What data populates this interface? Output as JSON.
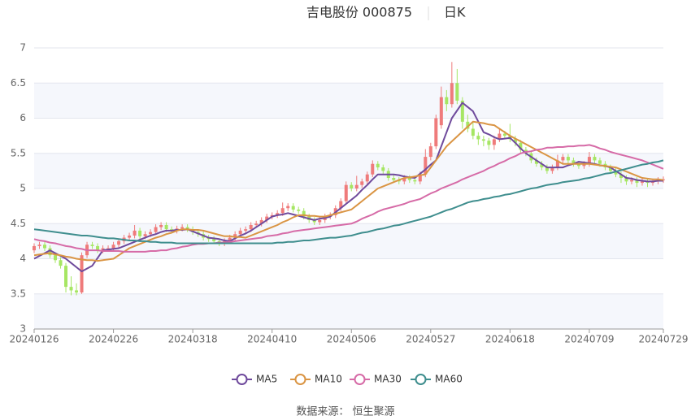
{
  "chart_data": {
    "type": "candlestick",
    "title": "吉电股份 000875",
    "period": "日K",
    "source": "数据来源： 恒生聚源",
    "categories": [
      "20240126",
      null,
      null,
      null,
      null,
      null,
      null,
      null,
      null,
      null,
      null,
      null,
      null,
      null,
      null,
      "20240226",
      null,
      null,
      null,
      null,
      null,
      null,
      null,
      null,
      null,
      null,
      null,
      null,
      null,
      null,
      "20240318",
      null,
      null,
      null,
      null,
      null,
      null,
      null,
      null,
      null,
      null,
      null,
      null,
      null,
      null,
      "20240410",
      null,
      null,
      null,
      null,
      null,
      null,
      null,
      null,
      null,
      null,
      null,
      null,
      null,
      null,
      "20240506",
      null,
      null,
      null,
      null,
      null,
      null,
      null,
      null,
      null,
      null,
      null,
      null,
      null,
      null,
      "20240527",
      null,
      null,
      null,
      null,
      null,
      null,
      null,
      null,
      null,
      null,
      null,
      null,
      null,
      null,
      "20240618",
      null,
      null,
      null,
      null,
      null,
      null,
      null,
      null,
      null,
      null,
      null,
      null,
      null,
      null,
      "20240709",
      null,
      null,
      null,
      null,
      null,
      null,
      null,
      null,
      null,
      null,
      null,
      null,
      null,
      "20240729"
    ],
    "open": [
      4.12,
      4.18,
      4.2,
      4.15,
      4.05,
      3.98,
      3.9,
      3.6,
      3.55,
      3.52,
      4.05,
      4.2,
      4.18,
      4.12,
      4.15,
      4.15,
      4.2,
      4.25,
      4.3,
      4.33,
      4.4,
      4.32,
      4.35,
      4.38,
      4.45,
      4.48,
      4.42,
      4.4,
      4.43,
      4.45,
      4.42,
      4.38,
      4.35,
      4.3,
      4.28,
      4.25,
      4.22,
      4.25,
      4.3,
      4.35,
      4.4,
      4.42,
      4.48,
      4.5,
      4.55,
      4.6,
      4.62,
      4.65,
      4.72,
      4.75,
      4.7,
      4.68,
      4.6,
      4.55,
      4.52,
      4.55,
      4.6,
      4.62,
      4.72,
      4.82,
      5.05,
      5.0,
      5.05,
      5.1,
      5.2,
      5.35,
      5.3,
      5.25,
      5.15,
      5.12,
      5.1,
      5.15,
      5.12,
      5.1,
      5.2,
      5.45,
      5.6,
      5.9,
      6.3,
      6.2,
      6.5,
      6.25,
      5.95,
      5.85,
      5.75,
      5.7,
      5.68,
      5.62,
      5.7,
      5.78,
      5.75,
      5.7,
      5.65,
      5.55,
      5.5,
      5.4,
      5.35,
      5.3,
      5.25,
      5.3,
      5.4,
      5.45,
      5.4,
      5.35,
      5.32,
      5.35,
      5.45,
      5.4,
      5.35,
      5.3,
      5.25,
      5.2,
      5.15,
      5.1,
      5.12,
      5.08,
      5.1,
      5.08,
      5.1,
      5.12
    ],
    "high": [
      4.22,
      4.24,
      4.24,
      4.19,
      4.09,
      4.02,
      3.94,
      3.75,
      3.65,
      4.09,
      4.24,
      4.24,
      4.22,
      4.19,
      4.19,
      4.24,
      4.29,
      4.34,
      4.37,
      4.48,
      4.44,
      4.39,
      4.42,
      4.49,
      4.52,
      4.52,
      4.46,
      4.47,
      4.49,
      4.49,
      4.46,
      4.42,
      4.39,
      4.34,
      4.32,
      4.29,
      4.29,
      4.34,
      4.39,
      4.44,
      4.46,
      4.52,
      4.54,
      4.59,
      4.64,
      4.66,
      4.69,
      4.8,
      4.79,
      4.79,
      4.74,
      4.72,
      4.64,
      4.59,
      4.59,
      4.64,
      4.66,
      4.76,
      4.86,
      5.1,
      5.09,
      5.18,
      5.14,
      5.24,
      5.4,
      5.39,
      5.34,
      5.29,
      5.19,
      5.16,
      5.19,
      5.19,
      5.16,
      5.24,
      5.56,
      5.65,
      6.05,
      6.45,
      6.4,
      6.8,
      6.7,
      6.3,
      6.05,
      5.95,
      5.8,
      5.75,
      5.72,
      5.75,
      5.85,
      5.82,
      5.92,
      5.75,
      5.69,
      5.59,
      5.54,
      5.44,
      5.39,
      5.34,
      5.34,
      5.48,
      5.49,
      5.49,
      5.44,
      5.39,
      5.39,
      5.52,
      5.49,
      5.44,
      5.39,
      5.34,
      5.29,
      5.24,
      5.19,
      5.16,
      5.16,
      5.14,
      5.14,
      5.14,
      5.16,
      5.17
    ],
    "low": [
      4.08,
      4.14,
      4.11,
      4.01,
      3.94,
      3.86,
      3.52,
      3.48,
      3.48,
      3.5,
      4.01,
      4.14,
      4.08,
      4.08,
      4.11,
      4.11,
      4.16,
      4.21,
      4.26,
      4.29,
      4.28,
      4.28,
      4.31,
      4.34,
      4.41,
      4.38,
      4.36,
      4.36,
      4.39,
      4.38,
      4.34,
      4.31,
      4.26,
      4.24,
      4.21,
      4.18,
      4.18,
      4.21,
      4.26,
      4.31,
      4.36,
      4.38,
      4.44,
      4.46,
      4.51,
      4.56,
      4.58,
      4.61,
      4.68,
      4.66,
      4.64,
      4.56,
      4.51,
      4.48,
      4.48,
      4.51,
      4.56,
      4.58,
      4.68,
      4.78,
      4.96,
      4.96,
      5.01,
      5.06,
      5.16,
      5.26,
      5.21,
      5.11,
      5.08,
      5.06,
      5.06,
      5.08,
      5.06,
      5.06,
      5.16,
      5.4,
      5.56,
      5.85,
      6.1,
      6.15,
      6.2,
      5.85,
      5.8,
      5.7,
      5.62,
      5.6,
      5.55,
      5.55,
      5.66,
      5.7,
      5.66,
      5.6,
      5.51,
      5.46,
      5.36,
      5.31,
      5.26,
      5.21,
      5.21,
      5.26,
      5.36,
      5.36,
      5.31,
      5.28,
      5.28,
      5.31,
      5.36,
      5.31,
      5.26,
      5.21,
      5.16,
      5.08,
      5.05,
      5.06,
      5.02,
      5.04,
      5.02,
      5.04,
      5.06,
      5.08
    ],
    "close": [
      4.18,
      4.2,
      4.15,
      4.05,
      3.98,
      3.9,
      3.6,
      3.55,
      3.52,
      4.05,
      4.2,
      4.18,
      4.12,
      4.15,
      4.15,
      4.2,
      4.25,
      4.3,
      4.33,
      4.4,
      4.32,
      4.35,
      4.38,
      4.45,
      4.48,
      4.42,
      4.4,
      4.43,
      4.45,
      4.42,
      4.38,
      4.35,
      4.3,
      4.28,
      4.25,
      4.22,
      4.25,
      4.3,
      4.35,
      4.4,
      4.42,
      4.48,
      4.5,
      4.55,
      4.6,
      4.62,
      4.65,
      4.72,
      4.75,
      4.7,
      4.68,
      4.6,
      4.55,
      4.52,
      4.55,
      4.6,
      4.62,
      4.72,
      4.82,
      5.05,
      5.0,
      5.05,
      5.1,
      5.2,
      5.35,
      5.3,
      5.25,
      5.15,
      5.12,
      5.1,
      5.15,
      5.12,
      5.1,
      5.2,
      5.45,
      5.6,
      6.0,
      6.3,
      6.2,
      6.5,
      6.25,
      5.95,
      5.85,
      5.75,
      5.7,
      5.68,
      5.62,
      5.7,
      5.78,
      5.75,
      5.7,
      5.65,
      5.55,
      5.5,
      5.4,
      5.35,
      5.3,
      5.25,
      5.3,
      5.4,
      5.45,
      5.4,
      5.35,
      5.32,
      5.35,
      5.45,
      5.4,
      5.35,
      5.3,
      5.25,
      5.2,
      5.15,
      5.1,
      5.12,
      5.08,
      5.1,
      5.08,
      5.1,
      5.12,
      5.13
    ],
    "up_color": "#ef7b7b",
    "down_color": "#a6e663",
    "series": [
      {
        "name": "MA5",
        "color": "#6f4a9c",
        "values": [
          4.0,
          4.04,
          4.08,
          4.12,
          4.08,
          4.04,
          4.0,
          3.94,
          3.88,
          3.82,
          3.86,
          3.9,
          4.01,
          4.12,
          4.13,
          4.14,
          4.15,
          4.18,
          4.21,
          4.24,
          4.27,
          4.3,
          4.33,
          4.35,
          4.38,
          4.4,
          4.4,
          4.41,
          4.41,
          4.42,
          4.39,
          4.36,
          4.33,
          4.3,
          4.29,
          4.28,
          4.26,
          4.25,
          4.29,
          4.33,
          4.36,
          4.4,
          4.45,
          4.5,
          4.55,
          4.6,
          4.62,
          4.63,
          4.65,
          4.63,
          4.61,
          4.59,
          4.57,
          4.55,
          4.57,
          4.58,
          4.6,
          4.66,
          4.72,
          4.78,
          4.84,
          4.9,
          4.98,
          5.05,
          5.13,
          5.2,
          5.2,
          5.2,
          5.2,
          5.19,
          5.17,
          5.16,
          5.15,
          5.21,
          5.27,
          5.34,
          5.4,
          5.6,
          5.8,
          6.0,
          6.11,
          6.22,
          6.16,
          6.1,
          5.95,
          5.8,
          5.77,
          5.73,
          5.7,
          5.71,
          5.72,
          5.65,
          5.57,
          5.5,
          5.45,
          5.4,
          5.35,
          5.3,
          5.3,
          5.3,
          5.3,
          5.33,
          5.35,
          5.38,
          5.37,
          5.36,
          5.35,
          5.33,
          5.32,
          5.3,
          5.25,
          5.2,
          5.15,
          5.14,
          5.12,
          5.11,
          5.1,
          5.1,
          5.11,
          5.11
        ]
      },
      {
        "name": "MA10",
        "color": "#da9544",
        "values": [
          4.05,
          4.06,
          4.07,
          4.08,
          4.06,
          4.05,
          4.03,
          4.02,
          4.0,
          3.99,
          3.98,
          3.98,
          3.97,
          3.98,
          3.99,
          4.0,
          4.05,
          4.1,
          4.15,
          4.18,
          4.21,
          4.24,
          4.27,
          4.3,
          4.32,
          4.35,
          4.37,
          4.4,
          4.42,
          4.42,
          4.41,
          4.41,
          4.4,
          4.38,
          4.36,
          4.34,
          4.32,
          4.32,
          4.31,
          4.31,
          4.3,
          4.33,
          4.36,
          4.39,
          4.42,
          4.45,
          4.48,
          4.52,
          4.55,
          4.59,
          4.62,
          4.62,
          4.61,
          4.61,
          4.6,
          4.6,
          4.62,
          4.64,
          4.66,
          4.68,
          4.7,
          4.76,
          4.82,
          4.88,
          4.94,
          5.0,
          5.03,
          5.06,
          5.09,
          5.12,
          5.15,
          5.16,
          5.17,
          5.19,
          5.2,
          5.3,
          5.4,
          5.5,
          5.6,
          5.67,
          5.74,
          5.81,
          5.88,
          5.95,
          5.94,
          5.93,
          5.91,
          5.9,
          5.85,
          5.8,
          5.75,
          5.71,
          5.67,
          5.63,
          5.59,
          5.55,
          5.51,
          5.47,
          5.43,
          5.39,
          5.35,
          5.35,
          5.35,
          5.35,
          5.35,
          5.35,
          5.34,
          5.33,
          5.32,
          5.31,
          5.3,
          5.27,
          5.24,
          5.21,
          5.18,
          5.15,
          5.14,
          5.13,
          5.13,
          5.12
        ]
      },
      {
        "name": "MA30",
        "color": "#d66ba7",
        "values": [
          4.28,
          4.26,
          4.25,
          4.23,
          4.22,
          4.2,
          4.18,
          4.17,
          4.15,
          4.14,
          4.12,
          4.12,
          4.12,
          4.11,
          4.11,
          4.11,
          4.11,
          4.1,
          4.1,
          4.1,
          4.1,
          4.1,
          4.11,
          4.11,
          4.12,
          4.12,
          4.14,
          4.15,
          4.17,
          4.18,
          4.2,
          4.21,
          4.21,
          4.22,
          4.22,
          4.23,
          4.23,
          4.24,
          4.25,
          4.26,
          4.27,
          4.28,
          4.29,
          4.3,
          4.32,
          4.33,
          4.34,
          4.36,
          4.37,
          4.39,
          4.4,
          4.41,
          4.42,
          4.43,
          4.44,
          4.45,
          4.46,
          4.47,
          4.48,
          4.49,
          4.5,
          4.53,
          4.57,
          4.6,
          4.63,
          4.67,
          4.7,
          4.72,
          4.74,
          4.76,
          4.78,
          4.81,
          4.83,
          4.85,
          4.89,
          4.93,
          4.96,
          5.0,
          5.03,
          5.06,
          5.09,
          5.13,
          5.16,
          5.19,
          5.22,
          5.25,
          5.29,
          5.32,
          5.36,
          5.39,
          5.43,
          5.46,
          5.5,
          5.52,
          5.53,
          5.55,
          5.56,
          5.58,
          5.58,
          5.59,
          5.59,
          5.6,
          5.6,
          5.61,
          5.61,
          5.62,
          5.6,
          5.57,
          5.55,
          5.52,
          5.5,
          5.48,
          5.46,
          5.44,
          5.42,
          5.4,
          5.37,
          5.34,
          5.31,
          5.28
        ]
      },
      {
        "name": "MA60",
        "color": "#3f8e8e",
        "values": [
          4.42,
          4.41,
          4.4,
          4.39,
          4.38,
          4.37,
          4.36,
          4.35,
          4.34,
          4.33,
          4.33,
          4.32,
          4.31,
          4.3,
          4.29,
          4.29,
          4.28,
          4.27,
          4.26,
          4.26,
          4.25,
          4.25,
          4.24,
          4.24,
          4.23,
          4.23,
          4.23,
          4.22,
          4.22,
          4.22,
          4.22,
          4.22,
          4.22,
          4.22,
          4.22,
          4.22,
          4.22,
          4.22,
          4.22,
          4.22,
          4.22,
          4.22,
          4.22,
          4.22,
          4.22,
          4.22,
          4.23,
          4.23,
          4.24,
          4.24,
          4.25,
          4.26,
          4.26,
          4.27,
          4.28,
          4.29,
          4.3,
          4.3,
          4.31,
          4.32,
          4.33,
          4.35,
          4.37,
          4.38,
          4.4,
          4.42,
          4.43,
          4.45,
          4.47,
          4.48,
          4.5,
          4.52,
          4.54,
          4.56,
          4.58,
          4.6,
          4.63,
          4.66,
          4.69,
          4.71,
          4.74,
          4.77,
          4.8,
          4.82,
          4.83,
          4.85,
          4.86,
          4.88,
          4.89,
          4.91,
          4.92,
          4.94,
          4.96,
          4.98,
          5.0,
          5.01,
          5.03,
          5.05,
          5.06,
          5.07,
          5.09,
          5.1,
          5.11,
          5.12,
          5.14,
          5.15,
          5.17,
          5.19,
          5.21,
          5.22,
          5.24,
          5.26,
          5.28,
          5.3,
          5.32,
          5.34,
          5.35,
          5.37,
          5.38,
          5.4
        ]
      }
    ],
    "ylim": [
      3,
      7
    ],
    "yticks": [
      3,
      3.5,
      4,
      4.5,
      5,
      5.5,
      6,
      6.5,
      7
    ],
    "grid": true
  }
}
